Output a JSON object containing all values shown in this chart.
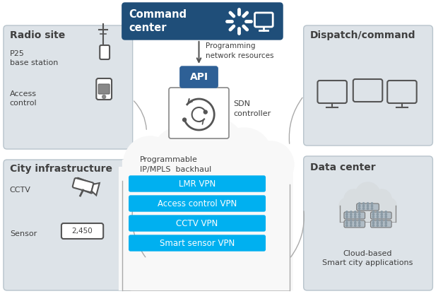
{
  "bg_color": "#ffffff",
  "panel_bg": "#dde3e8",
  "panel_edge": "#b8c4cc",
  "command_bg": "#1f4e79",
  "api_bg": "#2e6096",
  "vpn_color": "#00b0f0",
  "vpn_labels": [
    "LMR VPN",
    "Access control VPN",
    "CCTV VPN",
    "Smart sensor VPN"
  ],
  "cloud_fill": "#ffffff",
  "cloud_edge": "#aaaaaa",
  "sdn_edge": "#888888",
  "text_dark": "#404040",
  "text_white": "#ffffff",
  "arrow_color": "#555555",
  "icon_color": "#555555",
  "radio_title": "Radio site",
  "city_title": "City infrastructure",
  "dispatch_title": "Dispatch/command",
  "dc_title": "Data center",
  "dc_sub": "Cloud-based\nSmart city applications",
  "prog_text": "Programming\nnetwork resources",
  "cloud_label": "Programmable\nIP/MPLS  backhaul",
  "sdn_label": "SDN\ncontroller",
  "cc_label": "Command\ncenter",
  "api_label": "API"
}
